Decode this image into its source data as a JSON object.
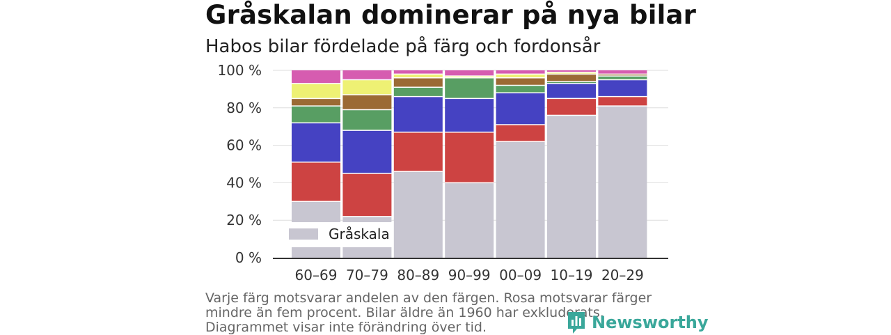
{
  "title": "Gråskalan dominerar på nya bilar",
  "subtitle": "Habos bilar fördelade på färg och fordonsår",
  "footnote": "Varje färg motsvarar andelen av den färgen. Rosa motsvarar färger mindre än fem procent. Bilar äldre än 1960 har exkluderats. Diagrammet visar inte förändring över tid.",
  "brand": {
    "name": "Newsworthy",
    "icon": "newsworthy-chart-bubble-icon",
    "color": "#3aa79a"
  },
  "chart_data": {
    "type": "bar",
    "stacked": true,
    "normalized_percent": true,
    "categories": [
      "60–69",
      "70–79",
      "80–89",
      "90–99",
      "00–09",
      "10–19",
      "20–29"
    ],
    "yticks": [
      "0 %",
      "20 %",
      "40 %",
      "60 %",
      "80 %",
      "100 %"
    ],
    "ylim": [
      0,
      100
    ],
    "grid": true,
    "legend": {
      "entries": [
        "Gråskala"
      ],
      "placement": "bottom-left"
    },
    "series": [
      {
        "name": "Gråskala",
        "color": "#c8c6d1",
        "values": [
          30,
          22,
          46,
          40,
          62,
          76,
          81
        ]
      },
      {
        "color": "#cd4342",
        "values": [
          21,
          23,
          21,
          27,
          9,
          9,
          5
        ]
      },
      {
        "color": "#4542c2",
        "values": [
          21,
          23,
          19,
          18,
          17,
          8,
          9
        ]
      },
      {
        "color": "#589e63",
        "values": [
          9,
          11,
          5,
          11,
          4,
          1,
          2
        ]
      },
      {
        "color": "#9b6a34",
        "values": [
          4,
          8,
          5,
          0,
          4,
          4,
          1
        ]
      },
      {
        "color": "#eef174",
        "values": [
          8,
          8,
          2,
          1,
          2,
          1,
          0
        ]
      },
      {
        "color": "#d65cb0",
        "values": [
          7,
          5,
          2,
          3,
          2,
          1,
          2
        ]
      }
    ]
  }
}
